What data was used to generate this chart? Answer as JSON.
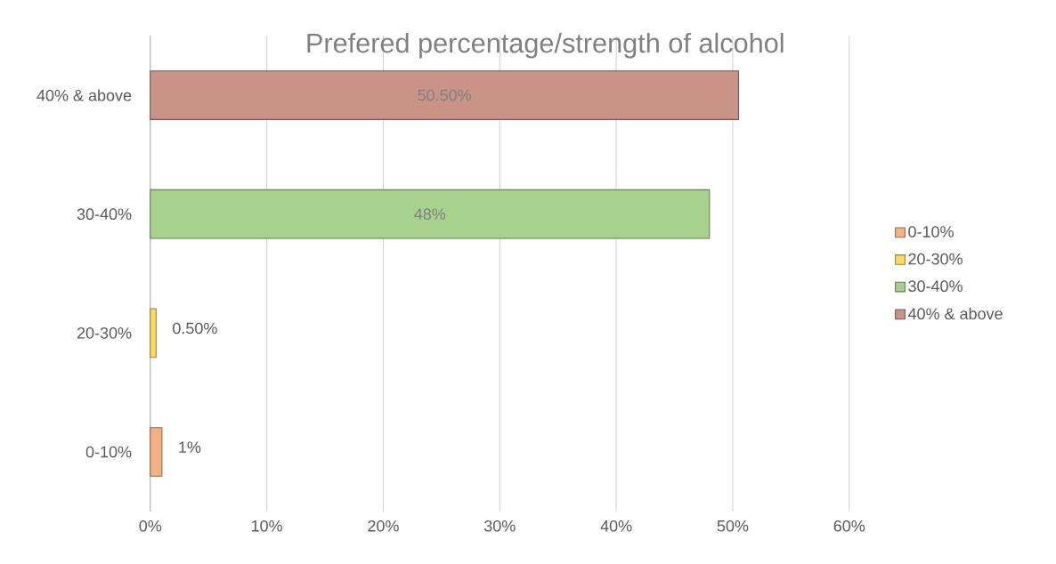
{
  "chart_data": {
    "type": "bar",
    "orientation": "horizontal",
    "title": "Prefered percentage/strength of alcohol",
    "categories": [
      "40% & above",
      "30-40%",
      "20-30%",
      "0-10%"
    ],
    "series": [
      {
        "name": "0-10%",
        "color": "#f4b183",
        "values": [
          null,
          null,
          null,
          1
        ],
        "value_labels": [
          null,
          null,
          null,
          "1%"
        ]
      },
      {
        "name": "20-30%",
        "color": "#ffd966",
        "values": [
          null,
          null,
          0.5,
          null
        ],
        "value_labels": [
          null,
          null,
          "0.50%",
          null
        ]
      },
      {
        "name": "30-40%",
        "color": "#a9d18e",
        "values": [
          null,
          48,
          null,
          null
        ],
        "value_labels": [
          null,
          "48%",
          null,
          null
        ]
      },
      {
        "name": "40% & above",
        "color": "#c99387",
        "values": [
          50.5,
          null,
          null,
          null
        ],
        "value_labels": [
          "50.50%",
          null,
          null,
          null
        ]
      }
    ],
    "xlim": [
      0,
      60
    ],
    "xticks": [
      {
        "value": 0,
        "label": "0%"
      },
      {
        "value": 10,
        "label": "10%"
      },
      {
        "value": 20,
        "label": "20%"
      },
      {
        "value": 30,
        "label": "30%"
      },
      {
        "value": 40,
        "label": "40%"
      },
      {
        "value": 50,
        "label": "50%"
      },
      {
        "value": 60,
        "label": "60%"
      }
    ],
    "grid": "x",
    "legend": "right"
  }
}
